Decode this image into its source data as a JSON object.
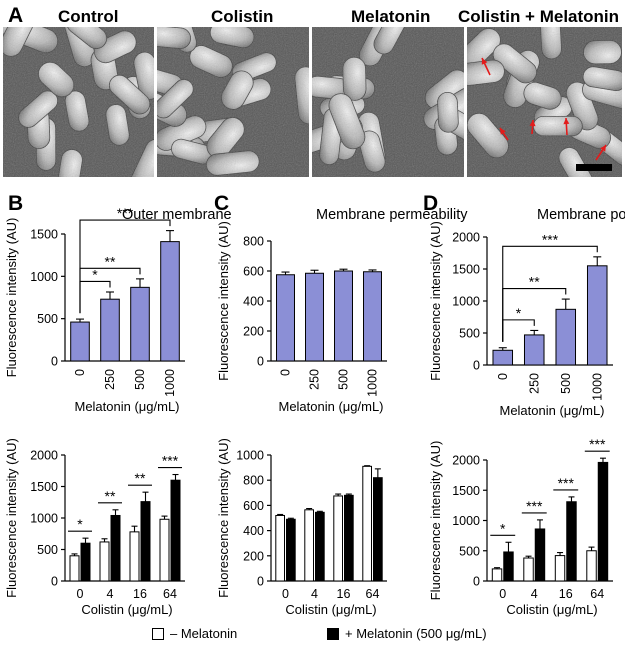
{
  "figure": {
    "panel_labels": {
      "A": "A",
      "B": "B",
      "C": "C",
      "D": "D"
    },
    "sem_titles": [
      "Control",
      "Colistin",
      "Melatonin",
      "Colistin + Melatonin"
    ],
    "legend": {
      "minus": "– Melatonin",
      "plus": "+ Melatonin (500 μg/mL)"
    },
    "colors": {
      "blue_bar": "#8b8fd6",
      "black_bar": "#000000",
      "white_bar": "#ffffff"
    }
  },
  "chart_data": [
    {
      "id": "B-top",
      "type": "bar",
      "title": "Outer membrane",
      "xlabel": "Melatonin (μg/mL)",
      "ylabel": "Fluorescence intensity (AU)",
      "ylim": [
        0,
        1500
      ],
      "yticks": [
        0,
        500,
        1000,
        1500
      ],
      "categories": [
        "0",
        "250",
        "500",
        "1000"
      ],
      "values": [
        460,
        730,
        870,
        1410
      ],
      "errors": [
        35,
        85,
        100,
        130
      ],
      "significance": [
        {
          "from": 0,
          "to": 1,
          "label": "*"
        },
        {
          "from": 0,
          "to": 2,
          "label": "**"
        },
        {
          "from": 0,
          "to": 3,
          "label": "***"
        }
      ]
    },
    {
      "id": "C-top",
      "type": "bar",
      "title": "Membrane permeability",
      "xlabel": "Melatonin (μg/mL)",
      "ylabel": "Fluorescence intensity (AU)",
      "ylim": [
        0,
        800
      ],
      "yticks": [
        0,
        200,
        400,
        600,
        800
      ],
      "categories": [
        "0",
        "250",
        "500",
        "1000"
      ],
      "values": [
        575,
        585,
        600,
        595
      ],
      "errors": [
        18,
        20,
        12,
        12
      ],
      "significance": []
    },
    {
      "id": "D-top",
      "type": "bar",
      "title": "Membrane potential",
      "xlabel": "Melatonin (μg/mL)",
      "ylabel": "Fluorescence intensity (AU)",
      "ylim": [
        0,
        2000
      ],
      "yticks": [
        0,
        500,
        1000,
        1500,
        2000
      ],
      "categories": [
        "0",
        "250",
        "500",
        "1000"
      ],
      "values": [
        230,
        470,
        870,
        1550
      ],
      "errors": [
        40,
        70,
        160,
        140
      ],
      "significance": [
        {
          "from": 0,
          "to": 1,
          "label": "*"
        },
        {
          "from": 0,
          "to": 2,
          "label": "**"
        },
        {
          "from": 0,
          "to": 3,
          "label": "***"
        }
      ]
    },
    {
      "id": "B-bottom",
      "type": "bar",
      "title": "",
      "xlabel": "Colistin (μg/mL)",
      "ylabel": "Fluorescence intensity (AU)",
      "ylim": [
        0,
        2000
      ],
      "yticks": [
        0,
        500,
        1000,
        1500,
        2000
      ],
      "categories": [
        "0",
        "4",
        "16",
        "64"
      ],
      "series": [
        {
          "name": "– Melatonin",
          "values": [
            400,
            620,
            780,
            980
          ],
          "errors": [
            30,
            50,
            90,
            50
          ]
        },
        {
          "name": "+ Melatonin (500 μg/mL)",
          "values": [
            600,
            1040,
            1260,
            1600
          ],
          "errors": [
            80,
            90,
            150,
            90
          ]
        }
      ],
      "significance": [
        "*",
        "**",
        "**",
        "***"
      ]
    },
    {
      "id": "C-bottom",
      "type": "bar",
      "title": "",
      "xlabel": "Colistin (μg/mL)",
      "ylabel": "Fluorescence intensity (AU)",
      "ylim": [
        0,
        1000
      ],
      "yticks": [
        0,
        200,
        400,
        600,
        800,
        1000
      ],
      "categories": [
        "0",
        "4",
        "16",
        "64"
      ],
      "series": [
        {
          "name": "– Melatonin",
          "values": [
            520,
            565,
            675,
            910
          ],
          "errors": [
            8,
            10,
            15,
            5
          ]
        },
        {
          "name": "+ Melatonin (500 μg/mL)",
          "values": [
            490,
            545,
            680,
            820
          ],
          "errors": [
            8,
            8,
            10,
            70
          ]
        }
      ],
      "significance": []
    },
    {
      "id": "D-bottom",
      "type": "bar",
      "title": "",
      "xlabel": "Colistin (μg/mL)",
      "ylabel": "Fluorescence intensity (AU)",
      "ylim": [
        0,
        2000
      ],
      "yticks": [
        0,
        500,
        1000,
        1500,
        2000
      ],
      "categories": [
        "0",
        "4",
        "16",
        "64"
      ],
      "series": [
        {
          "name": "– Melatonin",
          "values": [
            200,
            380,
            420,
            500
          ],
          "errors": [
            20,
            30,
            50,
            60
          ]
        },
        {
          "name": "+ Melatonin (500 μg/mL)",
          "values": [
            480,
            860,
            1310,
            1960
          ],
          "errors": [
            160,
            150,
            80,
            70
          ]
        }
      ],
      "significance": [
        "*",
        "***",
        "***",
        "***"
      ]
    }
  ]
}
